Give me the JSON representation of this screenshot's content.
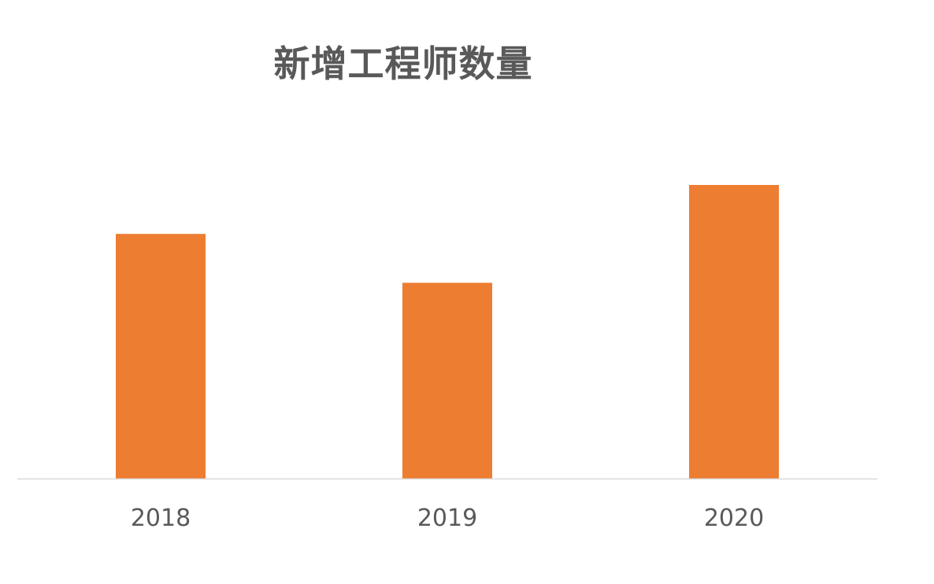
{
  "chart_data": {
    "type": "bar",
    "title": "新增工程师数量",
    "categories": [
      "2018",
      "2019",
      "2020"
    ],
    "values": [
      5,
      4,
      6
    ],
    "xlabel": "",
    "ylabel": "",
    "ylim": [
      0,
      6
    ],
    "grid": false,
    "legend": "none",
    "bar_color": "#ED7D31",
    "axis_color": "#D9D9D9",
    "text_color": "#595959"
  }
}
